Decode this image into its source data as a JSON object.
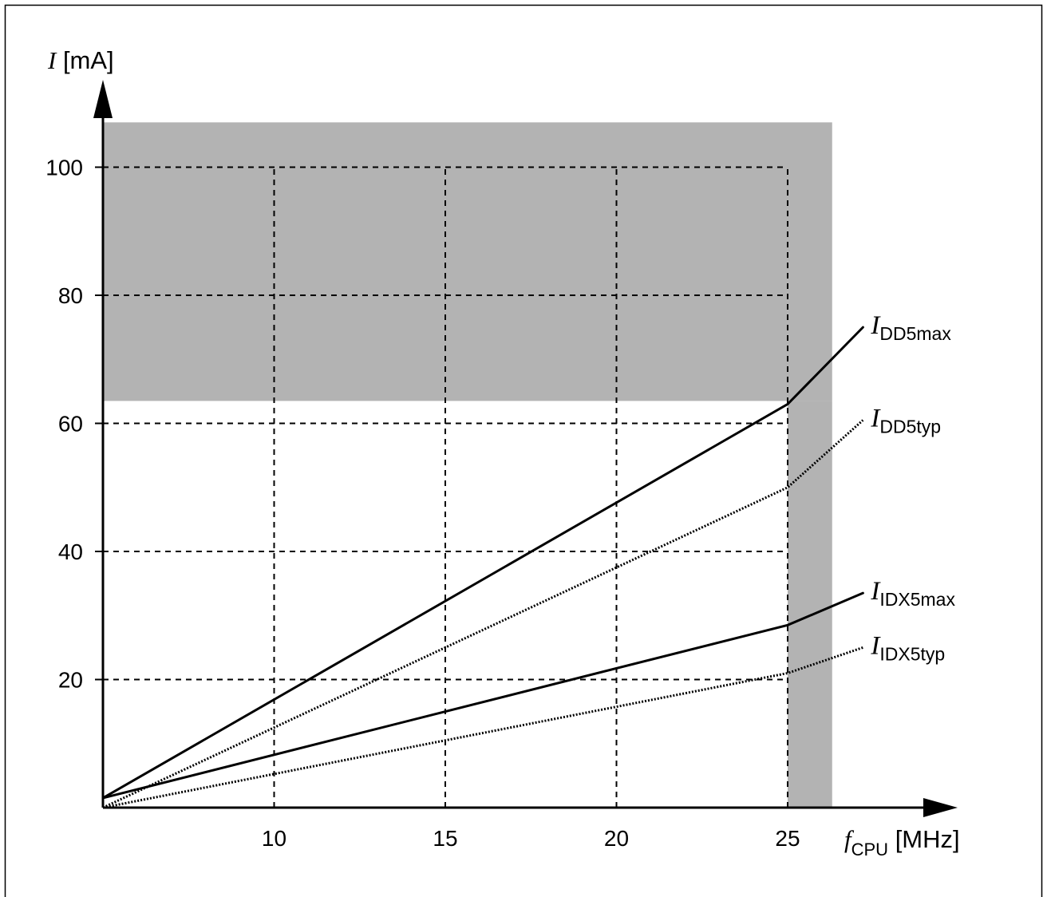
{
  "chart_data": {
    "type": "line",
    "ylabel_symbol": "I",
    "ylabel_unit": " [mA]",
    "xlabel_symbol": "f",
    "xlabel_sub": "CPU",
    "xlabel_unit": " [MHz]",
    "xlim": [
      5,
      26.5
    ],
    "ylim": [
      0,
      107
    ],
    "xticks": [
      10,
      15,
      20,
      25
    ],
    "yticks": [
      20,
      40,
      60,
      80,
      100
    ],
    "grid": true,
    "shaded_region": {
      "x": [
        5,
        26.3
      ],
      "y": [
        63.5,
        107
      ],
      "band_x": [
        25,
        26.3
      ],
      "band_y": [
        0,
        63.5
      ]
    },
    "series": [
      {
        "name_main": "I",
        "name_sub": "DD5max",
        "style": "solid",
        "x": [
          5,
          25,
          27.2
        ],
        "y": [
          1.5,
          63,
          75
        ]
      },
      {
        "name_main": "I",
        "name_sub": "DD5typ",
        "style": "dotted",
        "x": [
          5,
          25,
          27.2
        ],
        "y": [
          0,
          50,
          60.5
        ]
      },
      {
        "name_main": "I",
        "name_sub": "IDX5max",
        "style": "solid",
        "x": [
          5,
          25,
          27.2
        ],
        "y": [
          1.5,
          28.5,
          33.5
        ]
      },
      {
        "name_main": "I",
        "name_sub": "IDX5typ",
        "style": "dotted",
        "x": [
          5,
          25,
          27.2
        ],
        "y": [
          0,
          21,
          25
        ]
      }
    ]
  }
}
